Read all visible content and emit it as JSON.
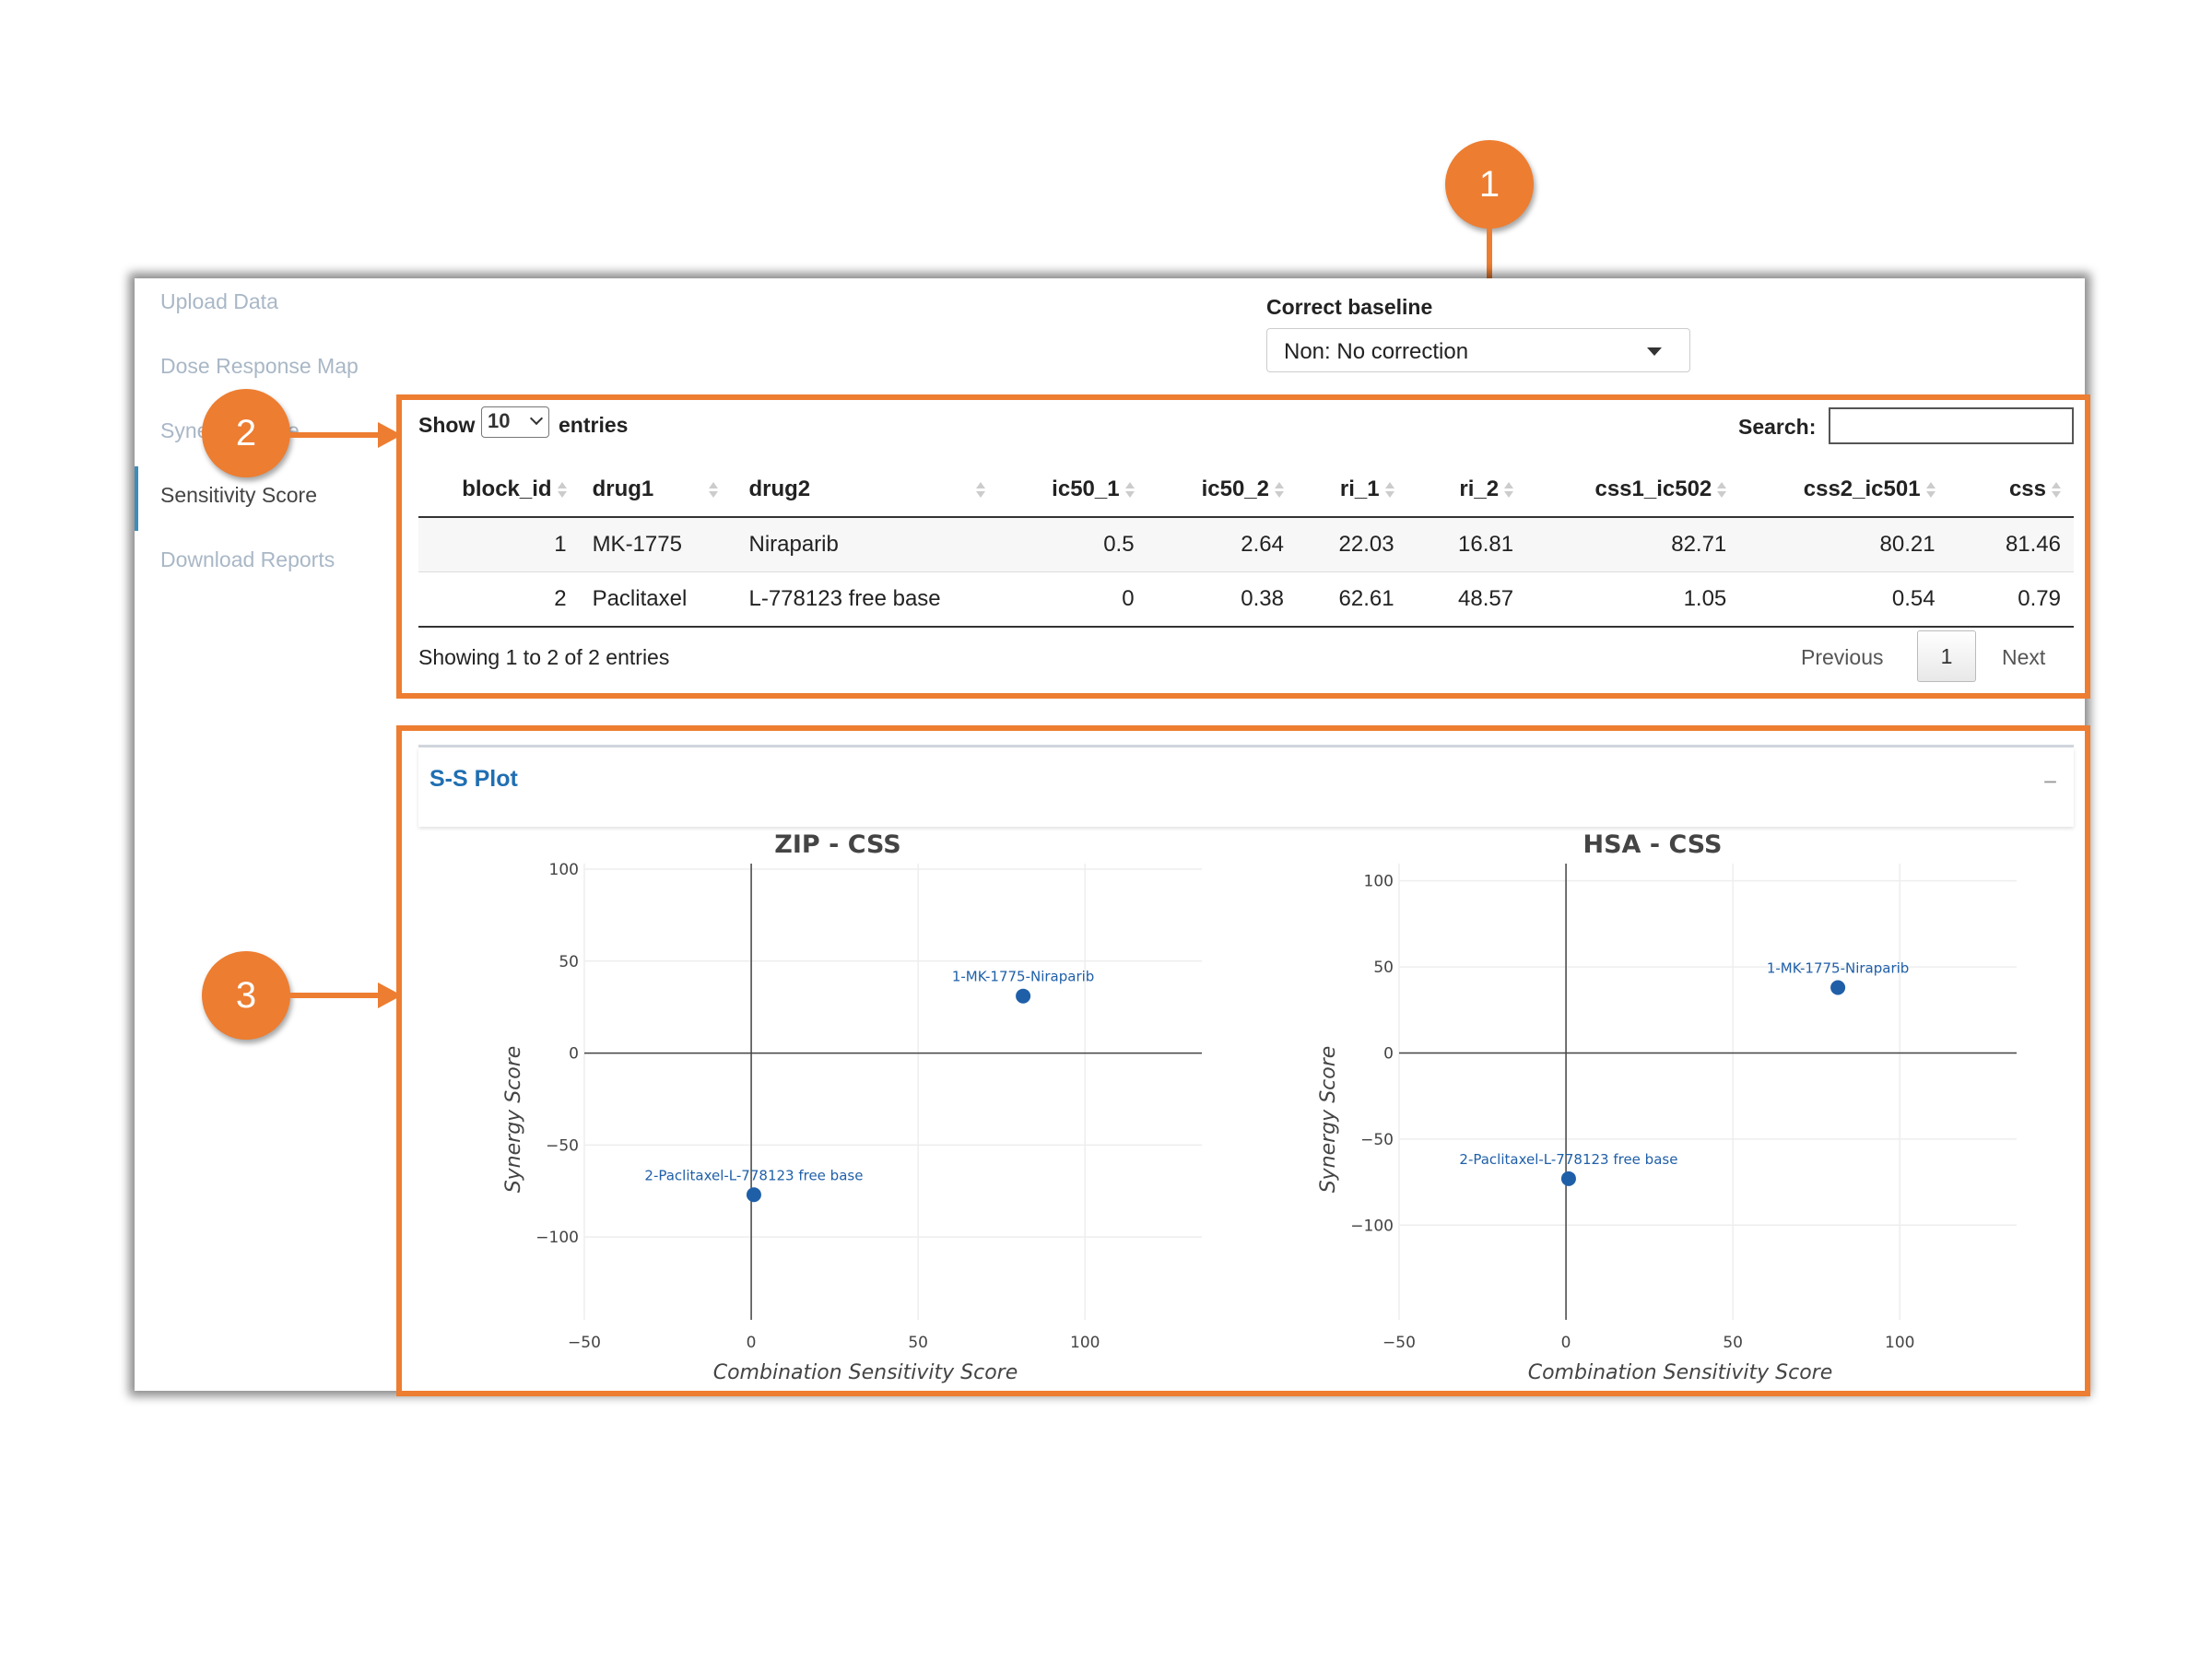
{
  "sidebar": {
    "items": [
      {
        "label": "Upload Data",
        "active": false
      },
      {
        "label": "Dose Response Map",
        "active": false
      },
      {
        "label": "Synergy Score",
        "active": false
      },
      {
        "label": "Sensitivity Score",
        "active": true
      },
      {
        "label": "Download Reports",
        "active": false
      }
    ]
  },
  "baseline": {
    "label": "Correct baseline",
    "value": "Non: No correction"
  },
  "table": {
    "show_label": "Show",
    "page_length": "10",
    "entries_label": "entries",
    "search_label": "Search:",
    "columns": [
      "block_id",
      "drug1",
      "drug2",
      "ic50_1",
      "ic50_2",
      "ri_1",
      "ri_2",
      "css1_ic502",
      "css2_ic501",
      "css"
    ],
    "rows": [
      [
        "1",
        "MK-1775",
        "Niraparib",
        "0.5",
        "2.64",
        "22.03",
        "16.81",
        "82.71",
        "80.21",
        "81.46"
      ],
      [
        "2",
        "Paclitaxel",
        "L-778123 free base",
        "0",
        "0.38",
        "62.61",
        "48.57",
        "1.05",
        "0.54",
        "0.79"
      ]
    ],
    "info": "Showing 1 to 2 of 2 entries",
    "pagination": {
      "previous": "Previous",
      "current": "1",
      "next": "Next"
    }
  },
  "ss_plot": {
    "title": "S-S Plot",
    "collapse_symbol": "−"
  },
  "annotations": {
    "badges": [
      "1",
      "2",
      "3"
    ],
    "color": "#ed7d31"
  },
  "chart_data": [
    {
      "type": "scatter",
      "title": "ZIP - CSS",
      "xlabel": "Combination Sensitivity Score",
      "ylabel": "Synergy Score",
      "xlim": [
        -50,
        135
      ],
      "ylim": [
        -145,
        103
      ],
      "xticks": [
        -50,
        0,
        50,
        100
      ],
      "yticks": [
        100,
        50,
        0,
        -50,
        -100
      ],
      "points": [
        {
          "label": "1-MK-1775-Niraparib",
          "x": 81.46,
          "y": 31
        },
        {
          "label": "2-Paclitaxel-L-778123 free base",
          "x": 0.79,
          "y": -77
        }
      ]
    },
    {
      "type": "scatter",
      "title": "HSA - CSS",
      "xlabel": "Combination Sensitivity Score",
      "ylabel": "Synergy Score",
      "xlim": [
        -50,
        135
      ],
      "ylim": [
        -155,
        110
      ],
      "xticks": [
        -50,
        0,
        50,
        100
      ],
      "yticks": [
        100,
        50,
        0,
        -50,
        -100
      ],
      "points": [
        {
          "label": "1-MK-1775-Niraparib",
          "x": 81.46,
          "y": 38
        },
        {
          "label": "2-Paclitaxel-L-778123 free base",
          "x": 0.79,
          "y": -73
        }
      ]
    }
  ]
}
